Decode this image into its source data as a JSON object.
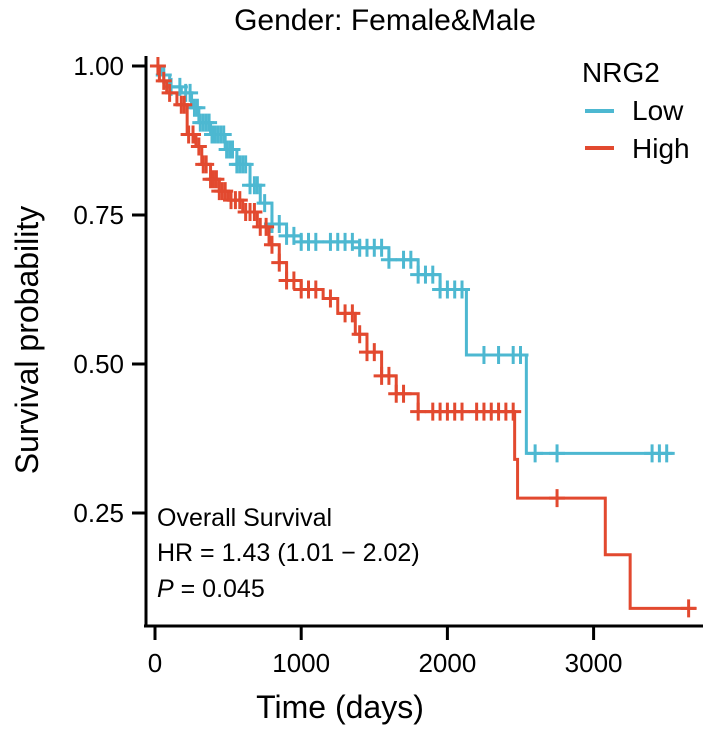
{
  "chart_data": {
    "type": "line",
    "subtype": "kaplan-meier",
    "title": "Gender: Female&Male",
    "xlabel": "Time (days)",
    "ylabel": "Survival probability",
    "xlim": [
      0,
      3700
    ],
    "ylim": [
      0.08,
      1.0
    ],
    "x_ticks": [
      0,
      1000,
      2000,
      3000
    ],
    "x_tick_labels": [
      "0",
      "1000",
      "2000",
      "3000"
    ],
    "y_ticks": [
      1.0,
      0.75,
      0.5,
      0.25
    ],
    "y_tick_labels": [
      "1.00",
      "0.75",
      "0.50",
      "0.25"
    ],
    "grid": false,
    "legend": {
      "title": "NRG2",
      "placement": "top-right",
      "entries": [
        {
          "label": "Low",
          "color": "#4db8d1"
        },
        {
          "label": "High",
          "color": "#e2492f"
        }
      ]
    },
    "annotation": {
      "line1": "Overall Survival",
      "line2": "HR = 1.43 (1.01 − 2.02)",
      "p_label": "P",
      "p_value": " = 0.045"
    },
    "series": [
      {
        "name": "Low",
        "color": "#4db8d1",
        "steps": [
          [
            0,
            1.0
          ],
          [
            40,
            0.985
          ],
          [
            100,
            0.965
          ],
          [
            180,
            0.955
          ],
          [
            250,
            0.93
          ],
          [
            300,
            0.905
          ],
          [
            380,
            0.885
          ],
          [
            480,
            0.86
          ],
          [
            560,
            0.835
          ],
          [
            650,
            0.8
          ],
          [
            720,
            0.77
          ],
          [
            800,
            0.735
          ],
          [
            900,
            0.715
          ],
          [
            1000,
            0.705
          ],
          [
            1400,
            0.695
          ],
          [
            1600,
            0.675
          ],
          [
            1800,
            0.65
          ],
          [
            1950,
            0.625
          ],
          [
            2130,
            0.515
          ],
          [
            2540,
            0.35
          ],
          [
            3540,
            0.35
          ]
        ],
        "censor_x": [
          60,
          110,
          170,
          210,
          240,
          270,
          290,
          310,
          330,
          350,
          370,
          390,
          410,
          430,
          450,
          470,
          490,
          510,
          530,
          560,
          580,
          600,
          620,
          650,
          680,
          700,
          750,
          800,
          850,
          900,
          950,
          1000,
          1050,
          1100,
          1200,
          1250,
          1300,
          1350,
          1400,
          1450,
          1500,
          1550,
          1600,
          1700,
          1750,
          1800,
          1850,
          1900,
          1950,
          2000,
          2050,
          2100,
          2250,
          2350,
          2450,
          2500,
          2600,
          2750,
          3400,
          3450,
          3500
        ]
      },
      {
        "name": "High",
        "color": "#e2492f",
        "steps": [
          [
            0,
            1.0
          ],
          [
            30,
            0.975
          ],
          [
            80,
            0.955
          ],
          [
            150,
            0.935
          ],
          [
            220,
            0.885
          ],
          [
            280,
            0.865
          ],
          [
            320,
            0.835
          ],
          [
            380,
            0.81
          ],
          [
            440,
            0.79
          ],
          [
            500,
            0.775
          ],
          [
            600,
            0.755
          ],
          [
            700,
            0.73
          ],
          [
            780,
            0.7
          ],
          [
            850,
            0.67
          ],
          [
            900,
            0.64
          ],
          [
            1000,
            0.625
          ],
          [
            1150,
            0.61
          ],
          [
            1250,
            0.585
          ],
          [
            1370,
            0.55
          ],
          [
            1450,
            0.52
          ],
          [
            1550,
            0.48
          ],
          [
            1650,
            0.45
          ],
          [
            1800,
            0.42
          ],
          [
            2460,
            0.34
          ],
          [
            2480,
            0.275
          ],
          [
            3080,
            0.18
          ],
          [
            3250,
            0.09
          ],
          [
            3700,
            0.09
          ]
        ],
        "censor_x": [
          20,
          60,
          100,
          180,
          200,
          230,
          260,
          300,
          330,
          350,
          380,
          400,
          420,
          440,
          460,
          480,
          520,
          550,
          580,
          620,
          650,
          680,
          720,
          760,
          800,
          850,
          900,
          950,
          1000,
          1050,
          1100,
          1200,
          1300,
          1350,
          1400,
          1450,
          1500,
          1550,
          1600,
          1650,
          1700,
          1800,
          1900,
          1950,
          2000,
          2050,
          2100,
          2200,
          2250,
          2300,
          2350,
          2400,
          2450,
          2750,
          3650
        ]
      }
    ]
  }
}
